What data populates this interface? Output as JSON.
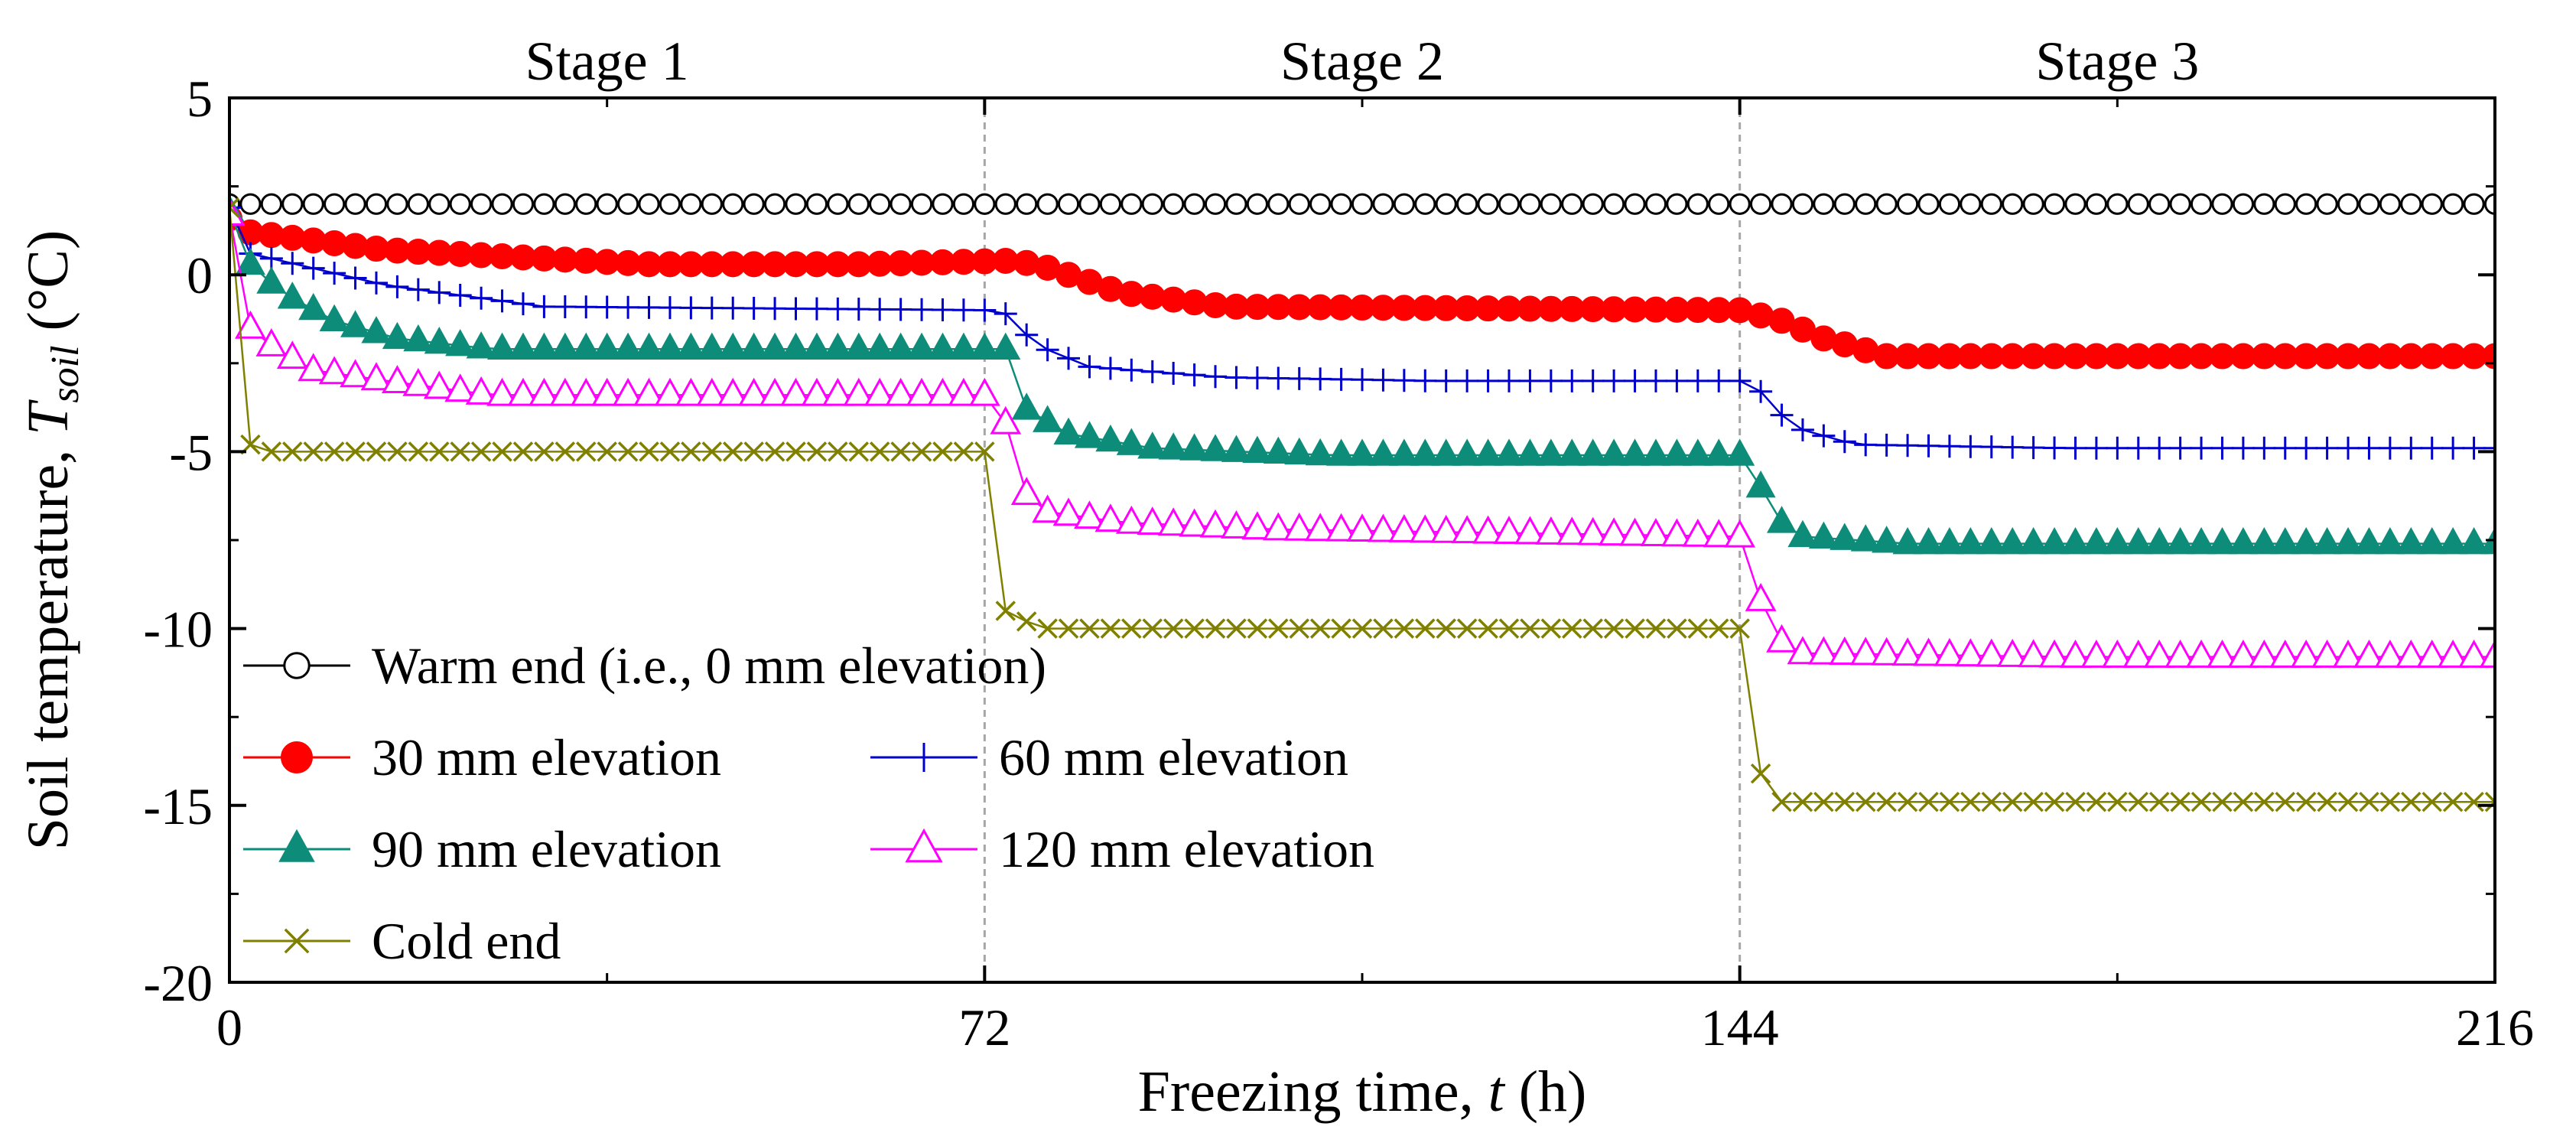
{
  "chart_data": {
    "type": "line",
    "title": "",
    "xlabel_main": "Freezing time, ",
    "xlabel_var": "t",
    "xlabel_unit": " (h)",
    "ylabel_main": "Soil temperature, ",
    "ylabel_var": "T",
    "ylabel_sub": "soil",
    "ylabel_unit": " (°C)",
    "xlim": [
      0,
      216
    ],
    "ylim": [
      -20,
      5
    ],
    "xticks": [
      0,
      72,
      144,
      216
    ],
    "xtick_labels": [
      "0",
      "72",
      "144",
      "216"
    ],
    "xminor": [
      36,
      108,
      180
    ],
    "yticks": [
      -20,
      -15,
      -10,
      -5,
      0,
      5
    ],
    "ytick_labels": [
      "-20",
      "-15",
      "-10",
      "-5",
      "0",
      "5"
    ],
    "stage_dividers": [
      72,
      144
    ],
    "stages": [
      {
        "label": "Stage 1",
        "x": 36
      },
      {
        "label": "Stage 2",
        "x": 108
      },
      {
        "label": "Stage 3",
        "x": 180
      }
    ],
    "series": [
      {
        "key": "warm",
        "name": "Warm end (i.e., 0 mm elevation)",
        "color": "#000000",
        "marker": "circle-open",
        "marker_every": 1,
        "points": [
          [
            0,
            2.0
          ],
          [
            72,
            2.0
          ],
          [
            144,
            2.0
          ],
          [
            216,
            2.0
          ]
        ]
      },
      {
        "key": "e30",
        "name": "30 mm elevation",
        "color": "#ff0000",
        "marker": "circle-filled",
        "marker_every": 1,
        "points": [
          [
            0,
            1.6
          ],
          [
            2,
            1.2
          ],
          [
            15,
            0.7
          ],
          [
            40,
            0.3
          ],
          [
            60,
            0.3
          ],
          [
            75,
            0.4
          ],
          [
            78,
            0.2
          ],
          [
            85,
            -0.5
          ],
          [
            95,
            -0.9
          ],
          [
            144,
            -1.0
          ],
          [
            148,
            -1.3
          ],
          [
            152,
            -1.8
          ],
          [
            158,
            -2.3
          ],
          [
            175,
            -2.3
          ],
          [
            216,
            -2.3
          ]
        ]
      },
      {
        "key": "e60",
        "name": "60 mm elevation",
        "color": "#0000cc",
        "marker": "plus",
        "marker_every": 1,
        "points": [
          [
            0,
            1.9
          ],
          [
            2,
            0.6
          ],
          [
            15,
            -0.3
          ],
          [
            30,
            -0.9
          ],
          [
            72,
            -1.0
          ],
          [
            74,
            -1.1
          ],
          [
            77,
            -2.0
          ],
          [
            82,
            -2.6
          ],
          [
            95,
            -2.9
          ],
          [
            115,
            -3.0
          ],
          [
            144,
            -3.0
          ],
          [
            146,
            -3.3
          ],
          [
            149,
            -4.3
          ],
          [
            155,
            -4.8
          ],
          [
            175,
            -4.9
          ],
          [
            216,
            -4.9
          ]
        ]
      },
      {
        "key": "e90",
        "name": "90 mm elevation",
        "color": "#0e8c7a",
        "marker": "triangle-filled",
        "marker_every": 1,
        "points": [
          [
            0,
            1.8
          ],
          [
            2,
            0.3
          ],
          [
            5,
            -0.5
          ],
          [
            10,
            -1.3
          ],
          [
            16,
            -1.8
          ],
          [
            25,
            -2.1
          ],
          [
            72,
            -2.1
          ],
          [
            74,
            -2.1
          ],
          [
            76,
            -3.8
          ],
          [
            80,
            -4.5
          ],
          [
            88,
            -4.9
          ],
          [
            105,
            -5.1
          ],
          [
            144,
            -5.1
          ],
          [
            145,
            -5.2
          ],
          [
            147,
            -6.8
          ],
          [
            150,
            -7.4
          ],
          [
            160,
            -7.6
          ],
          [
            216,
            -7.6
          ]
        ]
      },
      {
        "key": "e120",
        "name": "120 mm elevation",
        "color": "#ff00ff",
        "marker": "triangle-open",
        "marker_every": 1,
        "points": [
          [
            0,
            1.7
          ],
          [
            2,
            -1.5
          ],
          [
            4,
            -2.0
          ],
          [
            8,
            -2.7
          ],
          [
            15,
            -3.0
          ],
          [
            25,
            -3.4
          ],
          [
            72,
            -3.4
          ],
          [
            74,
            -4.2
          ],
          [
            76,
            -6.2
          ],
          [
            78,
            -6.7
          ],
          [
            85,
            -7.0
          ],
          [
            100,
            -7.2
          ],
          [
            144,
            -7.4
          ],
          [
            145,
            -8.2
          ],
          [
            147,
            -10.2
          ],
          [
            150,
            -10.7
          ],
          [
            175,
            -10.8
          ],
          [
            216,
            -10.8
          ]
        ]
      },
      {
        "key": "cold",
        "name": "Cold end",
        "color": "#808000",
        "marker": "cross",
        "marker_every": 1,
        "points": [
          [
            0,
            1.9
          ],
          [
            1,
            0.0
          ],
          [
            2,
            -4.8
          ],
          [
            4,
            -5.0
          ],
          [
            72,
            -5.0
          ],
          [
            73,
            -6.8
          ],
          [
            74,
            -9.5
          ],
          [
            76,
            -9.8
          ],
          [
            78,
            -10.0
          ],
          [
            144,
            -10.0
          ],
          [
            145,
            -12.5
          ],
          [
            146,
            -14.1
          ],
          [
            148,
            -14.9
          ],
          [
            216,
            -14.9
          ]
        ]
      }
    ],
    "legend_placement": "lower-left"
  }
}
